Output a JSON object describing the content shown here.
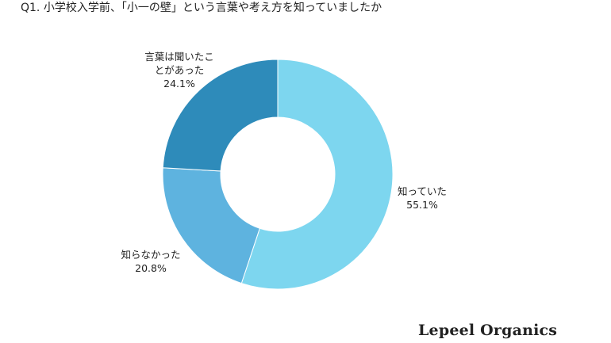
{
  "question": "Q1. 小学校入学前、「小一の壁」という言葉や考え方を知っていましたか",
  "brand": "Lepeel Organics",
  "chart_data": {
    "type": "pie",
    "donut": true,
    "title": "Q1. 小学校入学前、「小一の壁」という言葉や考え方を知っていましたか",
    "unit": "%",
    "slices": [
      {
        "label": [
          "知っていた"
        ],
        "value": 55.1,
        "value_text": "55.1%",
        "color": "#7dd6ef"
      },
      {
        "label": [
          "知らなかった"
        ],
        "value": 20.8,
        "value_text": "20.8%",
        "color": "#5eb3df"
      },
      {
        "label": [
          "言葉は聞いたこ",
          "とがあった"
        ],
        "value": 24.1,
        "value_text": "24.1%",
        "color": "#2e8bba"
      }
    ],
    "legend": "none"
  }
}
